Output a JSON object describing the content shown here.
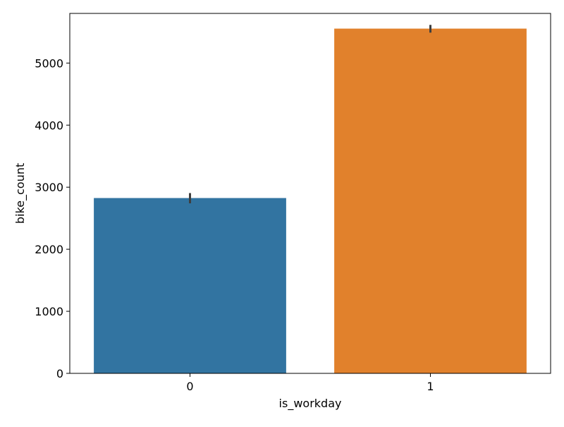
{
  "chart_data": {
    "type": "bar",
    "title": "",
    "xlabel": "is_workday",
    "ylabel": "bike_count",
    "categories": [
      "0",
      "1"
    ],
    "values": [
      2825,
      5555
    ],
    "error_bars": [
      {
        "low": 2740,
        "high": 2905
      },
      {
        "low": 5490,
        "high": 5615
      }
    ],
    "colors": [
      "#3274a1",
      "#e1812c"
    ],
    "error_bar_color": "#3f3f3f",
    "ylim": [
      0,
      5800
    ],
    "yticks": [
      0,
      1000,
      2000,
      3000,
      4000,
      5000
    ],
    "grid": false,
    "legend": "none"
  }
}
